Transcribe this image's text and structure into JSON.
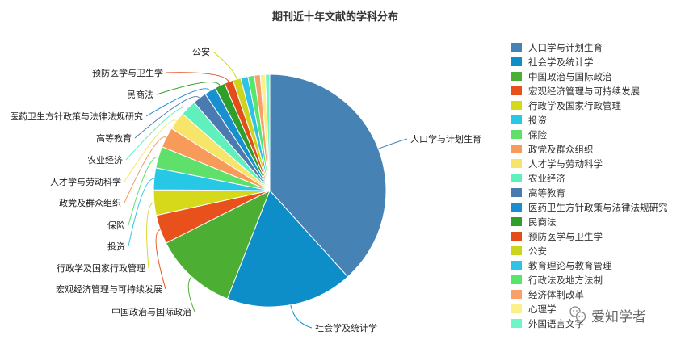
{
  "chart_data": {
    "type": "pie",
    "title": "期刊近十年文献的学科分布",
    "slices": [
      {
        "label": "人口学与计划生育",
        "value": 38.0,
        "color": "#4682b4"
      },
      {
        "label": "社会学及统计学",
        "value": 17.5,
        "color": "#0e8ec9"
      },
      {
        "label": "中国政治与国际政治",
        "value": 11.5,
        "color": "#4caf33"
      },
      {
        "label": "宏观经济管理与可持续发展",
        "value": 4.0,
        "color": "#e8511b"
      },
      {
        "label": "行政学及国家行政管理",
        "value": 3.5,
        "color": "#d6d91a"
      },
      {
        "label": "投资",
        "value": 3.0,
        "color": "#27c7e6"
      },
      {
        "label": "保险",
        "value": 3.0,
        "color": "#5fe06a"
      },
      {
        "label": "政党及群众组织",
        "value": 2.8,
        "color": "#f79a5a"
      },
      {
        "label": "人才学与劳动科学",
        "value": 2.5,
        "color": "#f7e56a"
      },
      {
        "label": "农业经济",
        "value": 2.2,
        "color": "#5ff0bc"
      },
      {
        "label": "高等教育",
        "value": 1.9,
        "color": "#4a7ab0"
      },
      {
        "label": "医药卫生方针政策与法律法规研究",
        "value": 1.6,
        "color": "#1a8fd0"
      },
      {
        "label": "民商法",
        "value": 1.4,
        "color": "#2f9e2a"
      },
      {
        "label": "预防医学与卫生学",
        "value": 1.2,
        "color": "#e34d1a"
      },
      {
        "label": "公安",
        "value": 1.1,
        "color": "#ccd41c"
      },
      {
        "label": "教育理论与教育管理",
        "value": 1.0,
        "color": "#2fc2e6"
      },
      {
        "label": "行政法及地方法制",
        "value": 0.9,
        "color": "#55e66a"
      },
      {
        "label": "经济体制改革",
        "value": 0.8,
        "color": "#f7a06a"
      },
      {
        "label": "心理学",
        "value": 0.7,
        "color": "#fbf08a"
      },
      {
        "label": "外国语言文字",
        "value": 0.6,
        "color": "#6ff5c8"
      }
    ],
    "callouts": [
      "人口学与计划生育",
      "社会学及统计学",
      "中国政治与国际政治",
      "宏观经济管理与可持续发展",
      "行政学及国家行政管理",
      "投资",
      "保险",
      "政党及群众组织",
      "人才学与劳动科学",
      "农业经济",
      "高等教育",
      "医药卫生方针政策与法律法规研究",
      "民商法",
      "预防医学与卫生学",
      "公安"
    ],
    "legend": {
      "position": "right",
      "entries": [
        "人口学与计划生育",
        "社会学及统计学",
        "中国政治与国际政治",
        "宏观经济管理与可持续发展",
        "行政学及国家行政管理",
        "投资",
        "保险",
        "政党及群众组织",
        "人才学与劳动科学",
        "农业经济",
        "高等教育",
        "医药卫生方针政策与法律法规研究",
        "民商法",
        "预防医学与卫生学",
        "公安",
        "教育理论与教育管理",
        "行政法及地方法制",
        "经济体制改革",
        "心理学",
        "外国语言文字"
      ]
    }
  },
  "watermark": {
    "text": "爱知学者",
    "icon": "wechat-icon"
  }
}
